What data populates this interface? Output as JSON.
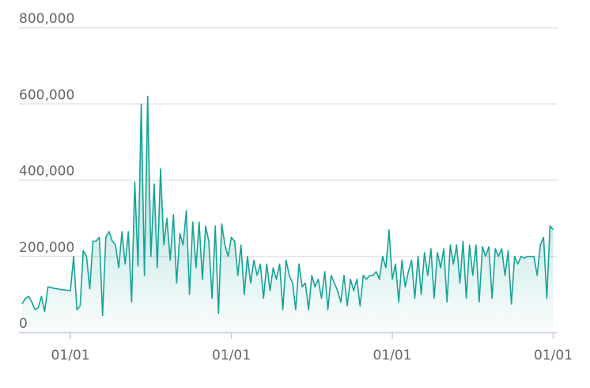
{
  "chart_data": {
    "type": "line",
    "color": "#17a398",
    "area": true,
    "grid": true,
    "categories": [
      null,
      null,
      null,
      null,
      null,
      null,
      null,
      null,
      null,
      null,
      null,
      null,
      null,
      null,
      null,
      "01/01",
      null,
      null,
      null,
      null,
      null,
      null,
      null,
      null,
      null,
      null,
      null,
      null,
      null,
      null,
      null,
      null,
      null,
      null,
      null,
      null,
      null,
      null,
      null,
      null,
      null,
      null,
      null,
      null,
      null,
      null,
      null,
      null,
      null,
      null,
      null,
      null,
      null,
      null,
      null,
      null,
      null,
      null,
      null,
      null,
      null,
      null,
      null,
      null,
      null,
      "01/01",
      null,
      null,
      null,
      null,
      null,
      null,
      null,
      null,
      null,
      null,
      null,
      null,
      null,
      null,
      null,
      null,
      null,
      null,
      null,
      null,
      null,
      null,
      null,
      null,
      null,
      null,
      null,
      null,
      null,
      null,
      null,
      null,
      null,
      null,
      null,
      null,
      null,
      null,
      null,
      null,
      null,
      null,
      null,
      null,
      null,
      null,
      null,
      null,
      null,
      "01/01",
      null,
      null,
      null,
      null,
      null,
      null,
      null,
      null,
      null,
      null,
      null,
      null,
      null,
      null,
      null,
      null,
      null,
      null,
      null,
      null,
      null,
      null,
      null,
      null,
      null,
      null,
      null,
      null,
      null,
      null,
      null,
      null,
      null,
      null,
      null,
      null,
      null,
      null,
      null,
      null,
      null,
      null,
      null,
      null,
      null,
      null,
      null,
      null,
      null,
      "01/01"
    ],
    "values": [
      75000,
      90000,
      95000,
      80000,
      60000,
      65000,
      95000,
      55000,
      120000,
      118000,
      116000,
      115000,
      113000,
      112000,
      111000,
      110000,
      200000,
      60000,
      70000,
      215000,
      200000,
      115000,
      240000,
      240000,
      250000,
      45000,
      250000,
      265000,
      240000,
      230000,
      170000,
      265000,
      180000,
      265000,
      80000,
      395000,
      175000,
      600000,
      150000,
      620000,
      200000,
      390000,
      170000,
      430000,
      230000,
      300000,
      190000,
      310000,
      130000,
      260000,
      230000,
      320000,
      100000,
      290000,
      170000,
      290000,
      140000,
      280000,
      240000,
      90000,
      280000,
      50000,
      285000,
      230000,
      200000,
      250000,
      240000,
      150000,
      230000,
      100000,
      200000,
      130000,
      190000,
      150000,
      180000,
      90000,
      180000,
      110000,
      170000,
      140000,
      180000,
      60000,
      190000,
      150000,
      130000,
      60000,
      180000,
      120000,
      130000,
      60000,
      150000,
      120000,
      140000,
      90000,
      160000,
      60000,
      150000,
      130000,
      110000,
      80000,
      150000,
      70000,
      140000,
      110000,
      140000,
      70000,
      150000,
      140000,
      150000,
      150000,
      160000,
      140000,
      200000,
      170000,
      270000,
      140000,
      180000,
      80000,
      190000,
      120000,
      160000,
      190000,
      90000,
      200000,
      100000,
      210000,
      150000,
      220000,
      90000,
      210000,
      170000,
      220000,
      80000,
      230000,
      180000,
      230000,
      130000,
      240000,
      90000,
      230000,
      150000,
      230000,
      80000,
      225000,
      200000,
      225000,
      90000,
      220000,
      200000,
      220000,
      150000,
      215000,
      75000,
      200000,
      180000,
      200000,
      195000,
      200000,
      200000,
      200000,
      150000,
      230000,
      250000,
      90000,
      280000,
      270000
    ],
    "ylim": [
      0,
      800000
    ],
    "yticks": [
      0,
      {
        "value": 200000,
        "label": "200,000"
      },
      {
        "value": 400000,
        "label": "400,000"
      },
      {
        "value": 600000,
        "label": "600,000"
      },
      {
        "value": 800000,
        "label": "800,000"
      }
    ]
  }
}
